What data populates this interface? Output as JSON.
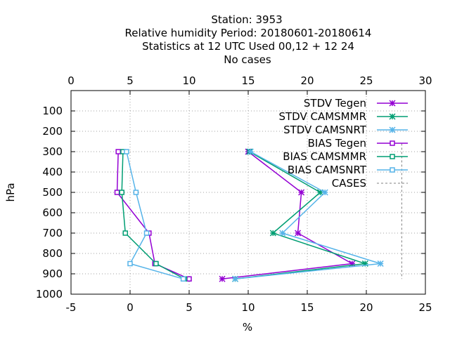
{
  "title_lines": [
    "Station:     3953",
    "Relative humidity  Period: 20180601-20180614",
    "Statistics at 12 UTC  Used  00,12  + 12 24",
    "No cases"
  ],
  "colors": {
    "purple": "#9400d3",
    "green": "#009e73",
    "lightblue": "#56b4e9",
    "cases": "#808080",
    "grid": "#a0a0a0"
  },
  "chart_data": {
    "type": "line",
    "xlabel": "%",
    "ylabel": "hPa",
    "xlim": [
      -5,
      25
    ],
    "x2lim": [
      0,
      30
    ],
    "ylim": [
      1000,
      0
    ],
    "x_ticks": [
      -5,
      0,
      5,
      10,
      15,
      20,
      25
    ],
    "x2_ticks": [
      0,
      5,
      10,
      15,
      20,
      25,
      30
    ],
    "y_ticks": [
      100,
      200,
      300,
      400,
      500,
      600,
      700,
      800,
      900,
      1000
    ],
    "legend_position": "top-right",
    "grid": true,
    "series": [
      {
        "name": "STDV Tegen",
        "axis": "top",
        "color": "purple",
        "marker": "x-star",
        "points": [
          [
            15.0,
            300
          ],
          [
            19.5,
            500
          ],
          [
            19.2,
            700
          ],
          [
            23.8,
            850
          ],
          [
            12.8,
            925
          ]
        ]
      },
      {
        "name": "STDV CAMSMMR",
        "axis": "top",
        "color": "green",
        "marker": "x-star",
        "points": [
          [
            15.1,
            300
          ],
          [
            21.1,
            500
          ],
          [
            17.1,
            700
          ],
          [
            24.9,
            850
          ],
          [
            13.9,
            925
          ]
        ]
      },
      {
        "name": "STDV CAMSNRT",
        "axis": "top",
        "color": "lightblue",
        "marker": "x-star",
        "points": [
          [
            15.2,
            300
          ],
          [
            21.5,
            500
          ],
          [
            17.9,
            700
          ],
          [
            26.2,
            850
          ],
          [
            13.9,
            925
          ]
        ]
      },
      {
        "name": "BIAS Tegen",
        "axis": "bottom",
        "color": "purple",
        "marker": "square",
        "points": [
          [
            -1.0,
            300
          ],
          [
            -1.1,
            500
          ],
          [
            1.6,
            700
          ],
          [
            2.1,
            850
          ],
          [
            5.0,
            925
          ]
        ]
      },
      {
        "name": "BIAS CAMSMMR",
        "axis": "bottom",
        "color": "green",
        "marker": "square",
        "points": [
          [
            -0.6,
            300
          ],
          [
            -0.7,
            500
          ],
          [
            -0.4,
            700
          ],
          [
            2.2,
            850
          ],
          [
            4.6,
            925
          ]
        ]
      },
      {
        "name": "BIAS CAMSNRT",
        "axis": "bottom",
        "color": "lightblue",
        "marker": "square",
        "points": [
          [
            -0.3,
            300
          ],
          [
            0.5,
            500
          ],
          [
            1.4,
            700
          ],
          [
            0.0,
            850
          ],
          [
            4.5,
            925
          ]
        ]
      },
      {
        "name": "CASES",
        "axis": "bottom",
        "color": "cases",
        "marker": "none",
        "dashed": true,
        "points": [
          [
            23.0,
            260
          ],
          [
            23.0,
            925
          ]
        ]
      }
    ]
  }
}
